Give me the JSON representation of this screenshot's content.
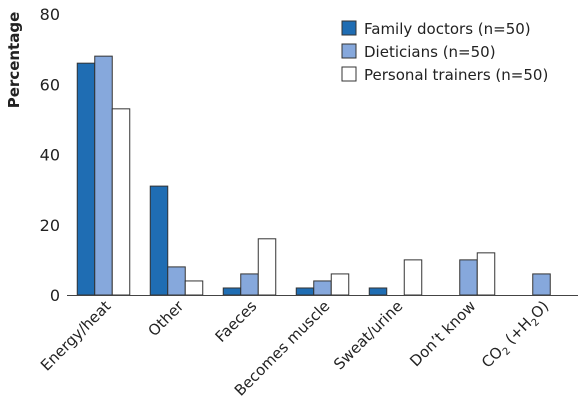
{
  "chart_data": {
    "type": "bar",
    "ylabel": "Percentage",
    "ylim": [
      0,
      80
    ],
    "yticks": [
      0,
      20,
      40,
      60,
      80
    ],
    "grid": false,
    "legend_position": "top-right",
    "categories": [
      "Energy/heat",
      "Other",
      "Faeces",
      "Becomes muscle",
      "Sweat/urine",
      "Don’t know",
      "CO2 (+H2O)"
    ],
    "series": [
      {
        "name": "Family doctors (n=50)",
        "color": "#1f6db3",
        "values": [
          66,
          31,
          2,
          2,
          2,
          0,
          0
        ]
      },
      {
        "name": "Dieticians (n=50)",
        "color": "#86a8dc",
        "values": [
          68,
          8,
          6,
          4,
          0,
          10,
          6
        ]
      },
      {
        "name": "Personal trainers (n=50)",
        "color": "#ffffff",
        "values": [
          53,
          4,
          16,
          6,
          10,
          12,
          0
        ]
      }
    ]
  }
}
